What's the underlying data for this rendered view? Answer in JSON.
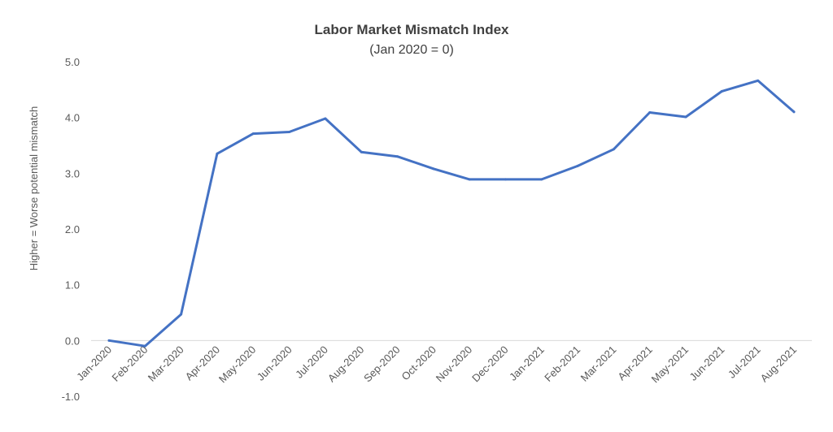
{
  "chart_data": {
    "type": "line",
    "title": "Labor Market Mismatch Index",
    "subtitle": "(Jan 2020 = 0)",
    "ylabel": "Higher = Worse potential mismatch",
    "xlabel": "",
    "ylim": [
      -1.0,
      5.0
    ],
    "yticks": [
      "-1.0",
      "0.0",
      "1.0",
      "2.0",
      "3.0",
      "4.0",
      "5.0"
    ],
    "ytick_values": [
      -1.0,
      0.0,
      1.0,
      2.0,
      3.0,
      4.0,
      5.0
    ],
    "grid": false,
    "legend": "none",
    "line_color": "#4472C4",
    "axis_color": "#D9D9D9",
    "categories": [
      "Jan-2020",
      "Feb-2020",
      "Mar-2020",
      "Apr-2020",
      "May-2020",
      "Jun-2020",
      "Jul-2020",
      "Aug-2020",
      "Sep-2020",
      "Oct-2020",
      "Nov-2020",
      "Dec-2020",
      "Jan-2021",
      "Feb-2021",
      "Mar-2021",
      "Apr-2021",
      "May-2021",
      "Jun-2021",
      "Jul-2021",
      "Aug-2021"
    ],
    "values": [
      0.0,
      -0.1,
      0.47,
      3.35,
      3.71,
      3.74,
      3.98,
      3.38,
      3.3,
      3.08,
      2.89,
      2.89,
      2.89,
      3.13,
      3.43,
      4.09,
      4.01,
      4.47,
      4.66,
      4.1
    ]
  }
}
